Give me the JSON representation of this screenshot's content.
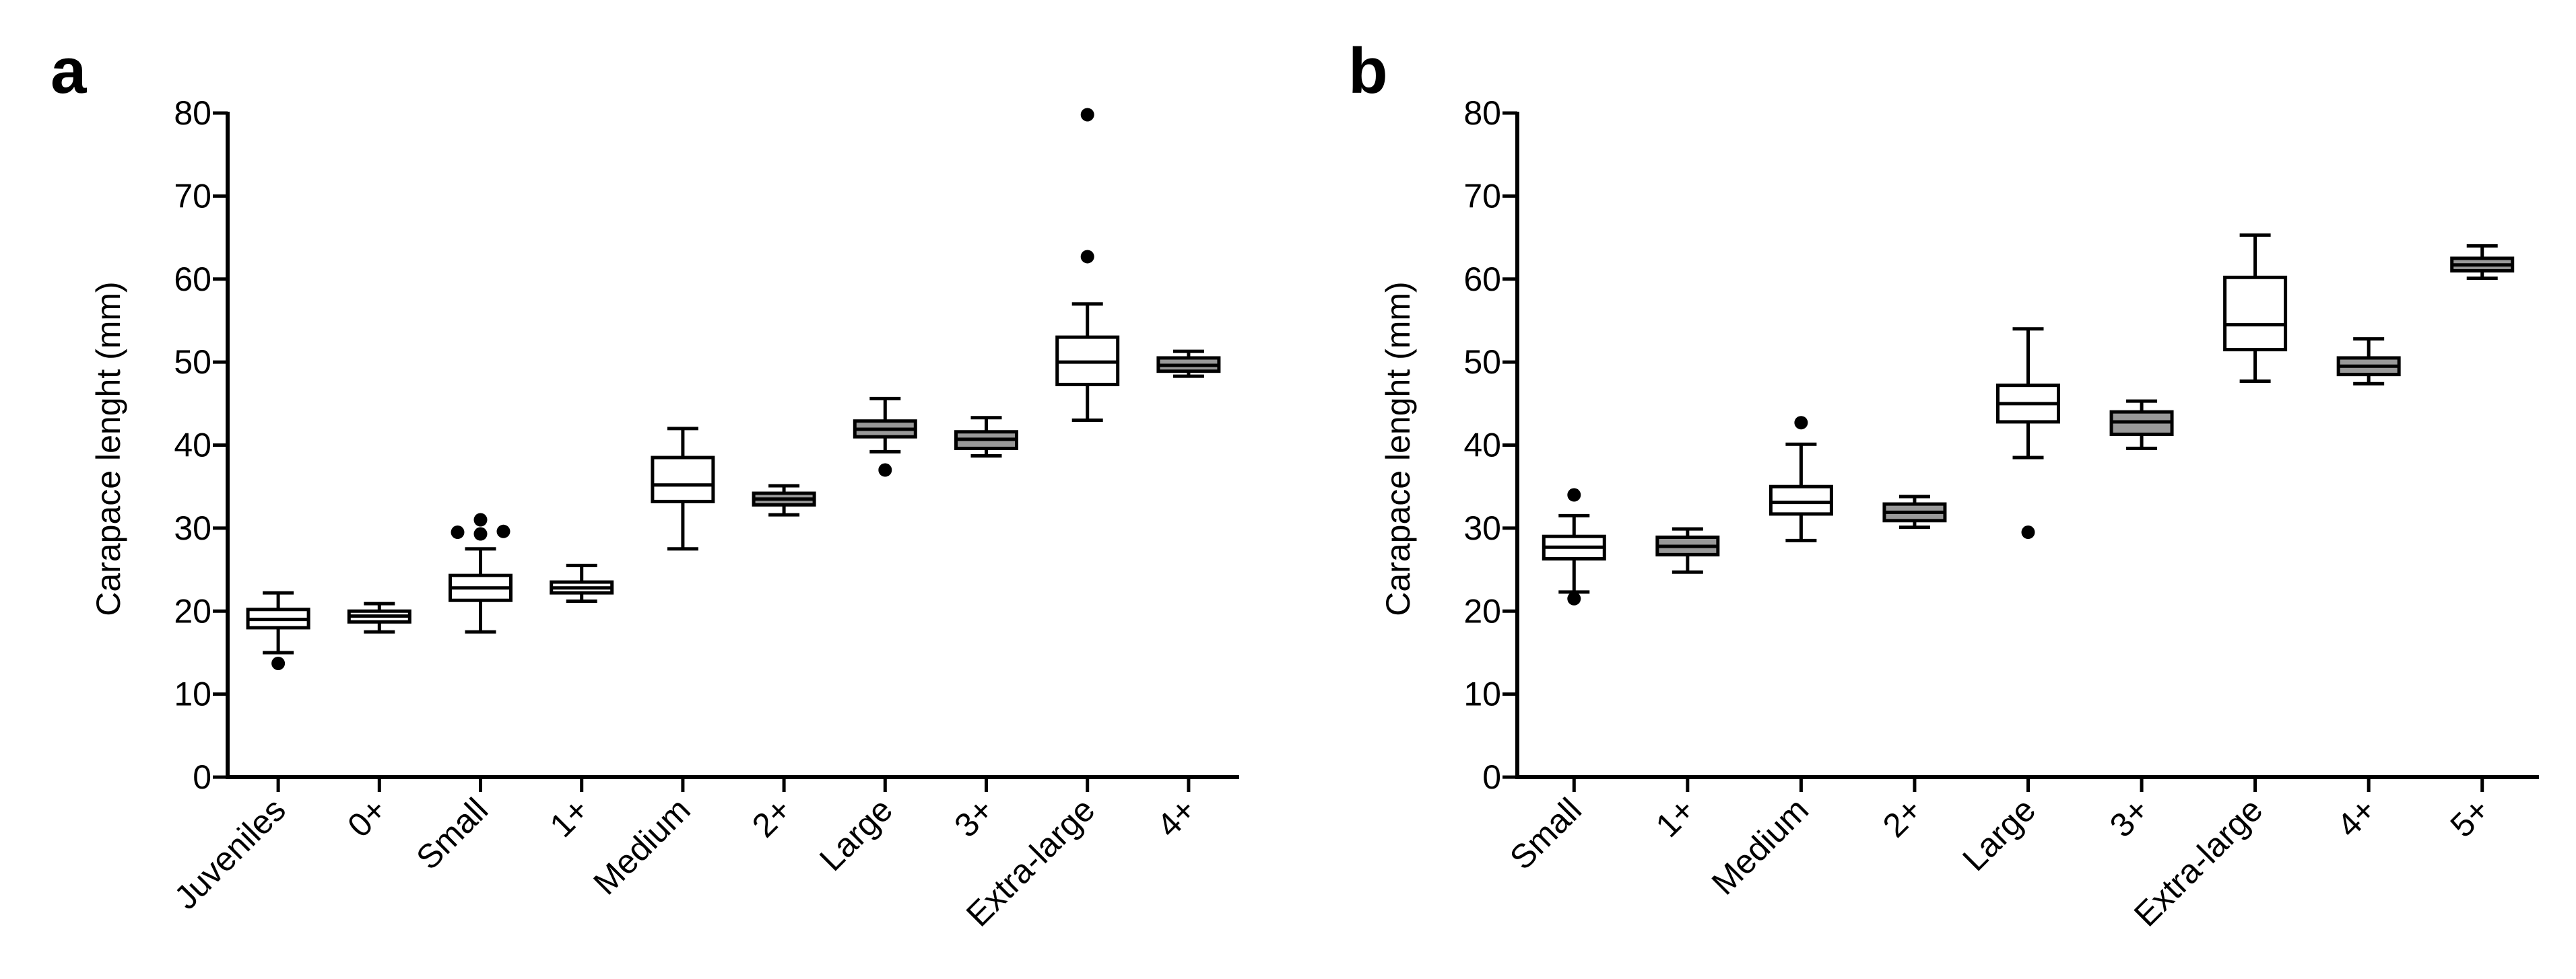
{
  "colors": {
    "axis": "#000000",
    "box_unfilled": "#ffffff",
    "box_filled": "#999999"
  },
  "chart_data": [
    {
      "type": "boxplot",
      "panel_label": "a",
      "ylabel": "Carapace lenght (mm)",
      "ylim": [
        0,
        80
      ],
      "yticks": [
        "0",
        "10",
        "20",
        "30",
        "40",
        "50",
        "60",
        "70",
        "80"
      ],
      "categories": [
        "Juveniles",
        "0+",
        "Small",
        "1+",
        "Medium",
        "2+",
        "Large",
        "3+",
        "Extra-large",
        "4+"
      ],
      "boxes": [
        {
          "label": "Juveniles",
          "filled": false,
          "whisker_low": 15,
          "q1": 18,
          "median": 19,
          "q3": 20.2,
          "whisker_high": 22.2,
          "outliers": [
            13.7
          ]
        },
        {
          "label": "0+",
          "filled": false,
          "whisker_low": 17.5,
          "q1": 18.7,
          "median": 19.4,
          "q3": 20,
          "whisker_high": 20.9,
          "outliers": []
        },
        {
          "label": "Small",
          "filled": false,
          "whisker_low": 17.5,
          "q1": 21.3,
          "median": 22.8,
          "q3": 24.3,
          "whisker_high": 27.5,
          "outliers": [
            29.5,
            29.3,
            31,
            29.6
          ]
        },
        {
          "label": "1+",
          "filled": false,
          "whisker_low": 21.2,
          "q1": 22.2,
          "median": 22.8,
          "q3": 23.5,
          "whisker_high": 25.5,
          "outliers": []
        },
        {
          "label": "Medium",
          "filled": false,
          "whisker_low": 27.5,
          "q1": 33.2,
          "median": 35.2,
          "q3": 38.5,
          "whisker_high": 42,
          "outliers": []
        },
        {
          "label": "2+",
          "filled": true,
          "whisker_low": 31.6,
          "q1": 32.8,
          "median": 33.5,
          "q3": 34.2,
          "whisker_high": 35.1,
          "outliers": []
        },
        {
          "label": "Large",
          "filled": true,
          "whisker_low": 39.2,
          "q1": 41,
          "median": 41.9,
          "q3": 42.9,
          "whisker_high": 45.6,
          "outliers": [
            37
          ]
        },
        {
          "label": "3+",
          "filled": true,
          "whisker_low": 38.7,
          "q1": 39.6,
          "median": 40.7,
          "q3": 41.6,
          "whisker_high": 43.3,
          "outliers": []
        },
        {
          "label": "Extra-large",
          "filled": false,
          "whisker_low": 43,
          "q1": 47.3,
          "median": 50,
          "q3": 53,
          "whisker_high": 57,
          "outliers": [
            62.7,
            79.8
          ]
        },
        {
          "label": "4+",
          "filled": true,
          "whisker_low": 48.3,
          "q1": 48.9,
          "median": 49.6,
          "q3": 50.5,
          "whisker_high": 51.3,
          "outliers": []
        }
      ]
    },
    {
      "type": "boxplot",
      "panel_label": "b",
      "ylabel": "Carapace lenght (mm)",
      "ylim": [
        0,
        80
      ],
      "yticks": [
        "0",
        "10",
        "20",
        "30",
        "40",
        "50",
        "60",
        "70",
        "80"
      ],
      "categories": [
        "Small",
        "1+",
        "Medium",
        "2+",
        "Large",
        "3+",
        "Extra-large",
        "4+",
        "5+"
      ],
      "boxes": [
        {
          "label": "Small",
          "filled": false,
          "whisker_low": 22.3,
          "q1": 26.3,
          "median": 27.7,
          "q3": 29,
          "whisker_high": 31.5,
          "outliers": [
            21.5,
            34
          ]
        },
        {
          "label": "1+",
          "filled": true,
          "whisker_low": 24.7,
          "q1": 26.8,
          "median": 27.8,
          "q3": 28.9,
          "whisker_high": 29.9,
          "outliers": []
        },
        {
          "label": "Medium",
          "filled": false,
          "whisker_low": 28.5,
          "q1": 31.7,
          "median": 33.1,
          "q3": 35,
          "whisker_high": 40.1,
          "outliers": [
            42.7
          ]
        },
        {
          "label": "2+",
          "filled": true,
          "whisker_low": 30.1,
          "q1": 30.9,
          "median": 31.9,
          "q3": 32.9,
          "whisker_high": 33.8,
          "outliers": []
        },
        {
          "label": "Large",
          "filled": false,
          "whisker_low": 38.5,
          "q1": 42.8,
          "median": 45,
          "q3": 47.2,
          "whisker_high": 54,
          "outliers": [
            29.5
          ]
        },
        {
          "label": "3+",
          "filled": true,
          "whisker_low": 39.6,
          "q1": 41.3,
          "median": 42.8,
          "q3": 44,
          "whisker_high": 45.3,
          "outliers": []
        },
        {
          "label": "Extra-large",
          "filled": false,
          "whisker_low": 47.7,
          "q1": 51.5,
          "median": 54.5,
          "q3": 60.2,
          "whisker_high": 65.3,
          "outliers": []
        },
        {
          "label": "4+",
          "filled": true,
          "whisker_low": 47.4,
          "q1": 48.5,
          "median": 49.5,
          "q3": 50.5,
          "whisker_high": 52.8,
          "outliers": []
        },
        {
          "label": "5+",
          "filled": true,
          "whisker_low": 60.1,
          "q1": 61,
          "median": 61.7,
          "q3": 62.5,
          "whisker_high": 64,
          "outliers": []
        }
      ]
    }
  ]
}
